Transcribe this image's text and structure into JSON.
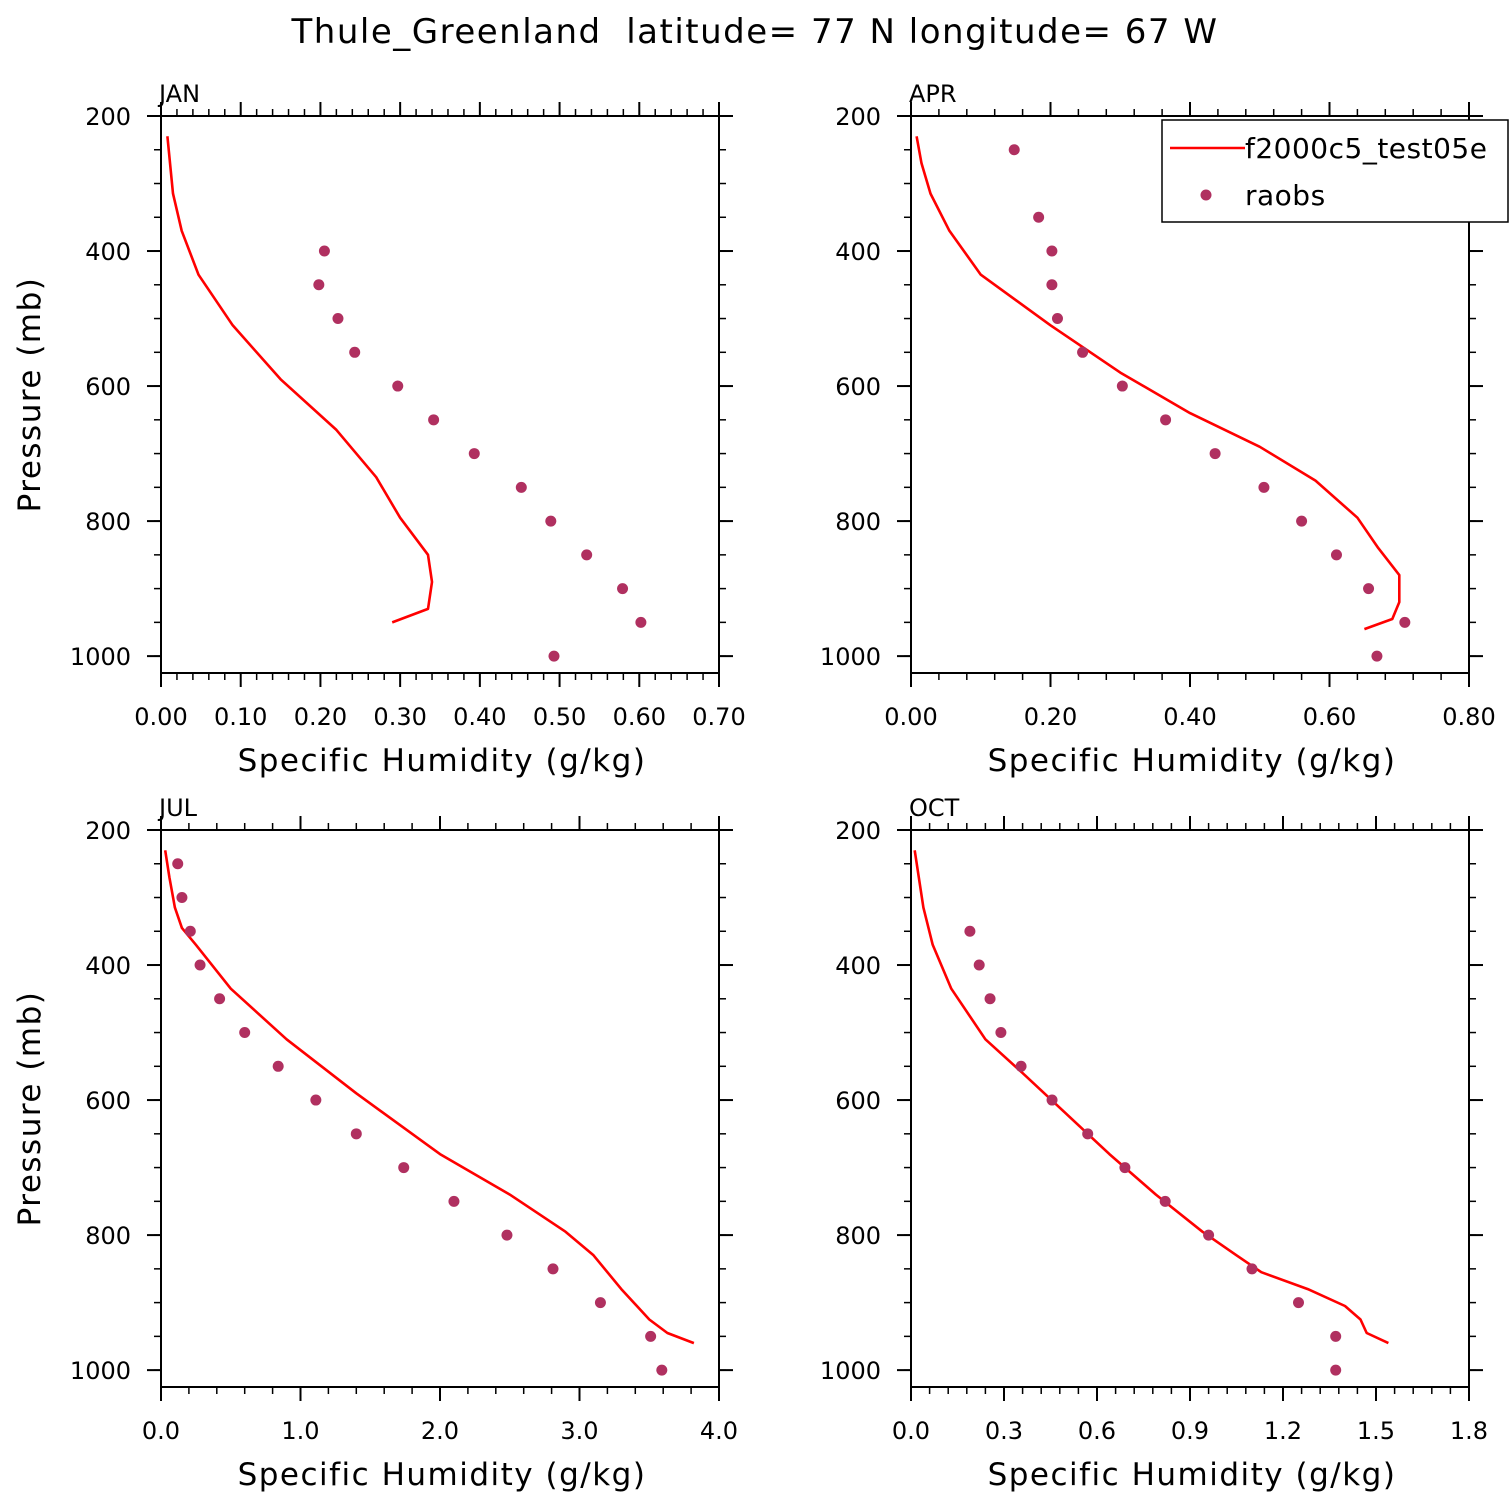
{
  "figure": {
    "title": "Thule_Greenland  latitude= 77 N longitude= 67 W"
  },
  "colors": {
    "model": "#ff0000",
    "obs": "#b03060"
  },
  "legend": {
    "model_label": "f2000c5_test05e",
    "obs_label": "raobs",
    "placement": "top-right of APR panel"
  },
  "chart_data": [
    {
      "type": "line",
      "panel": "JAN",
      "xlabel": "Specific Humidity (g/kg)",
      "ylabel": "Pressure (mb)",
      "xlim": [
        0,
        0.7
      ],
      "ylim": [
        1025,
        200
      ],
      "xticks": [
        0,
        0.1,
        0.2,
        0.3,
        0.4,
        0.5,
        0.6,
        0.7
      ],
      "xtick_labels": [
        "0.00",
        "0.10",
        "0.20",
        "0.30",
        "0.40",
        "0.50",
        "0.60",
        "0.70"
      ],
      "yticks": [
        200,
        400,
        600,
        800,
        1000
      ],
      "yticks_minor_step": 50,
      "series": [
        {
          "name": "f2000c5_test05e",
          "style": "line",
          "x": [
            0.008,
            0.015,
            0.026,
            0.047,
            0.09,
            0.15,
            0.22,
            0.27,
            0.3,
            0.335,
            0.34,
            0.335,
            0.29
          ],
          "y": [
            230,
            315,
            370,
            435,
            510,
            590,
            665,
            735,
            795,
            850,
            890,
            930,
            950
          ]
        },
        {
          "name": "raobs",
          "style": "points",
          "x": [
            0.205,
            0.198,
            0.222,
            0.243,
            0.297,
            0.342,
            0.393,
            0.452,
            0.489,
            0.534,
            0.579,
            0.602,
            0.493
          ],
          "y": [
            400,
            450,
            500,
            550,
            600,
            650,
            700,
            750,
            800,
            850,
            900,
            950,
            1000
          ]
        }
      ]
    },
    {
      "type": "line",
      "panel": "APR",
      "xlabel": "Specific Humidity (g/kg)",
      "ylabel": "",
      "xlim": [
        0,
        0.8
      ],
      "ylim": [
        1025,
        200
      ],
      "xticks": [
        0,
        0.2,
        0.4,
        0.6,
        0.8
      ],
      "xtick_labels": [
        "0.00",
        "0.20",
        "0.40",
        "0.60",
        "0.80"
      ],
      "yticks": [
        200,
        400,
        600,
        800,
        1000
      ],
      "yticks_minor_step": 50,
      "series": [
        {
          "name": "f2000c5_test05e",
          "style": "line",
          "x": [
            0.008,
            0.015,
            0.028,
            0.055,
            0.1,
            0.2,
            0.3,
            0.4,
            0.5,
            0.58,
            0.64,
            0.67,
            0.7,
            0.7,
            0.69,
            0.65
          ],
          "y": [
            230,
            270,
            315,
            370,
            435,
            510,
            580,
            640,
            690,
            740,
            795,
            840,
            880,
            920,
            945,
            960
          ]
        },
        {
          "name": "raobs",
          "style": "points",
          "x": [
            0.148,
            0.183,
            0.202,
            0.202,
            0.21,
            0.246,
            0.303,
            0.365,
            0.436,
            0.506,
            0.56,
            0.61,
            0.656,
            0.708,
            0.668
          ],
          "y": [
            250,
            350,
            400,
            450,
            500,
            550,
            600,
            650,
            700,
            750,
            800,
            850,
            900,
            950,
            1000
          ]
        }
      ]
    },
    {
      "type": "line",
      "panel": "JUL",
      "xlabel": "Specific Humidity (g/kg)",
      "ylabel": "Pressure (mb)",
      "xlim": [
        0,
        4.0
      ],
      "ylim": [
        1025,
        200
      ],
      "xticks": [
        0,
        1,
        2,
        3,
        4
      ],
      "xtick_labels": [
        "0.0",
        "1.0",
        "2.0",
        "3.0",
        "4.0"
      ],
      "yticks": [
        200,
        400,
        600,
        800,
        1000
      ],
      "yticks_minor_step": 50,
      "series": [
        {
          "name": "f2000c5_test05e",
          "style": "line",
          "x": [
            0.03,
            0.06,
            0.1,
            0.15,
            0.25,
            0.5,
            0.9,
            1.4,
            2.0,
            2.5,
            2.9,
            3.1,
            3.3,
            3.5,
            3.63,
            3.82
          ],
          "y": [
            230,
            270,
            315,
            345,
            370,
            435,
            510,
            590,
            680,
            740,
            795,
            830,
            880,
            925,
            945,
            960
          ]
        },
        {
          "name": "raobs",
          "style": "points",
          "x": [
            0.12,
            0.15,
            0.21,
            0.28,
            0.42,
            0.6,
            0.84,
            1.11,
            1.4,
            1.74,
            2.1,
            2.48,
            2.81,
            3.15,
            3.51,
            3.59
          ],
          "y": [
            250,
            300,
            350,
            400,
            450,
            500,
            550,
            600,
            650,
            700,
            750,
            800,
            850,
            900,
            950,
            1000
          ]
        }
      ]
    },
    {
      "type": "line",
      "panel": "OCT",
      "xlabel": "Specific Humidity (g/kg)",
      "ylabel": "",
      "xlim": [
        0,
        1.8
      ],
      "ylim": [
        1025,
        200
      ],
      "xticks": [
        0,
        0.3,
        0.6,
        0.9,
        1.2,
        1.5,
        1.8
      ],
      "xtick_labels": [
        "0.0",
        "0.3",
        "0.6",
        "0.9",
        "1.2",
        "1.5",
        "1.8"
      ],
      "yticks": [
        200,
        400,
        600,
        800,
        1000
      ],
      "yticks_minor_step": 50,
      "series": [
        {
          "name": "f2000c5_test05e",
          "style": "line",
          "x": [
            0.012,
            0.025,
            0.04,
            0.07,
            0.13,
            0.24,
            0.36,
            0.5,
            0.64,
            0.79,
            0.94,
            1.05,
            1.13,
            1.28,
            1.4,
            1.45,
            1.47,
            1.54
          ],
          "y": [
            230,
            270,
            315,
            370,
            435,
            510,
            560,
            620,
            680,
            740,
            795,
            830,
            855,
            880,
            905,
            925,
            945,
            960
          ]
        },
        {
          "name": "raobs",
          "style": "points",
          "x": [
            0.19,
            0.22,
            0.255,
            0.29,
            0.355,
            0.455,
            0.57,
            0.69,
            0.82,
            0.96,
            1.1,
            1.25,
            1.37,
            1.37
          ],
          "y": [
            350,
            400,
            450,
            500,
            550,
            600,
            650,
            700,
            750,
            800,
            850,
            900,
            950,
            1000
          ]
        }
      ]
    }
  ]
}
